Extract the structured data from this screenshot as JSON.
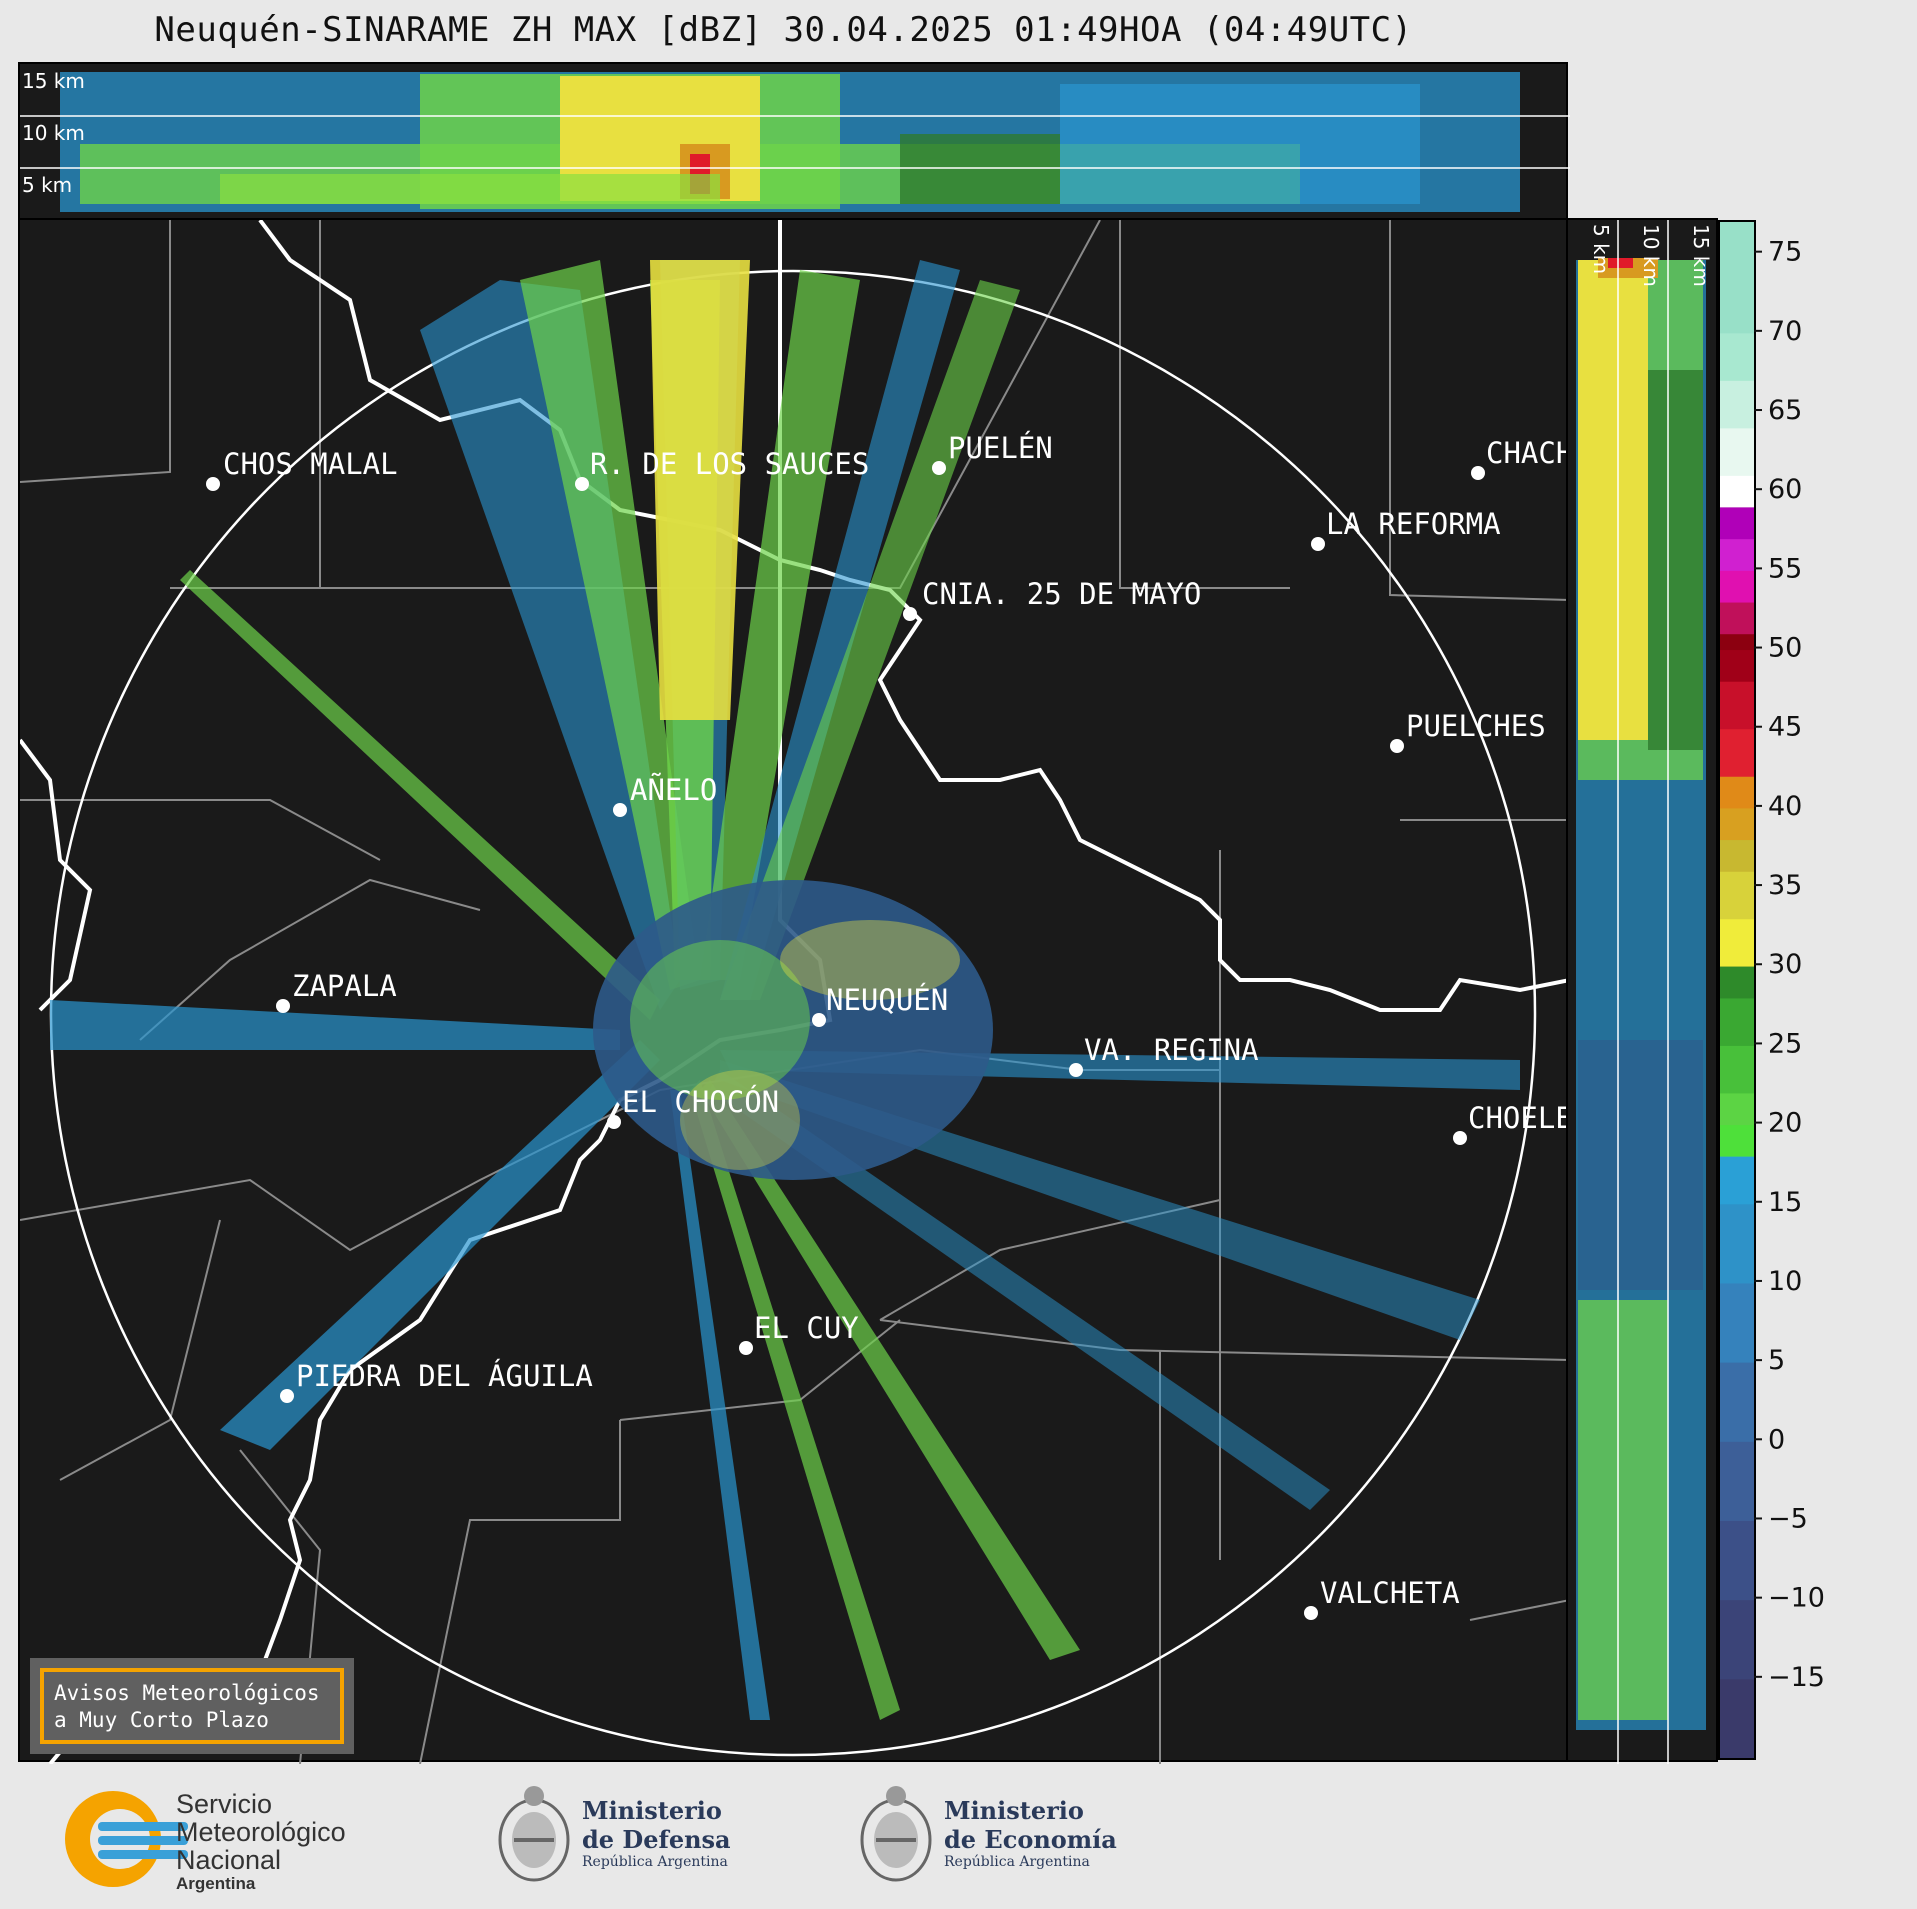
{
  "title": "Neuquén-SINARAME ZH MAX [dBZ] 30.04.2025 01:49HOA (04:49UTC)",
  "top_panel": {
    "height_labels": [
      "15 km",
      "10 km",
      "5 km"
    ]
  },
  "side_panel": {
    "height_labels": [
      "5 km",
      "10 km",
      "15 km"
    ]
  },
  "cities": [
    {
      "name": "CHOS MALAL"
    },
    {
      "name": "R. DE LOS SAUCES"
    },
    {
      "name": "PUELÉN"
    },
    {
      "name": "CHACH"
    },
    {
      "name": "LA REFORMA"
    },
    {
      "name": "CNIA. 25 DE MAYO"
    },
    {
      "name": "PUELCHES"
    },
    {
      "name": "AÑELO"
    },
    {
      "name": "ZAPALA"
    },
    {
      "name": "NEUQUÉN"
    },
    {
      "name": "VA. REGINA"
    },
    {
      "name": "EL CHOCÓN"
    },
    {
      "name": "CHOELE"
    },
    {
      "name": "EL CUY"
    },
    {
      "name": "PIEDRA DEL ÁGUILA"
    },
    {
      "name": "VALCHETA"
    }
  ],
  "colorbar": {
    "unit": "dBZ",
    "ticks": [
      "75",
      "70",
      "65",
      "60",
      "55",
      "50",
      "45",
      "40",
      "35",
      "30",
      "25",
      "20",
      "15",
      "10",
      "5",
      "0",
      "−5",
      "−10",
      "−15"
    ],
    "range": [
      -20,
      77
    ]
  },
  "notice": {
    "line1": "Avisos Meteorológicos",
    "line2": "a Muy Corto Plazo"
  },
  "logos": {
    "smn": {
      "line1": "Servicio",
      "line2": "Meteorológico",
      "line3": "Nacional",
      "line4": "Argentina"
    },
    "defensa": {
      "line1": "Ministerio",
      "line2": "de Defensa",
      "line3": "República Argentina"
    },
    "economia": {
      "line1": "Ministerio",
      "line2": "de Economía",
      "line3": "República Argentina"
    }
  }
}
